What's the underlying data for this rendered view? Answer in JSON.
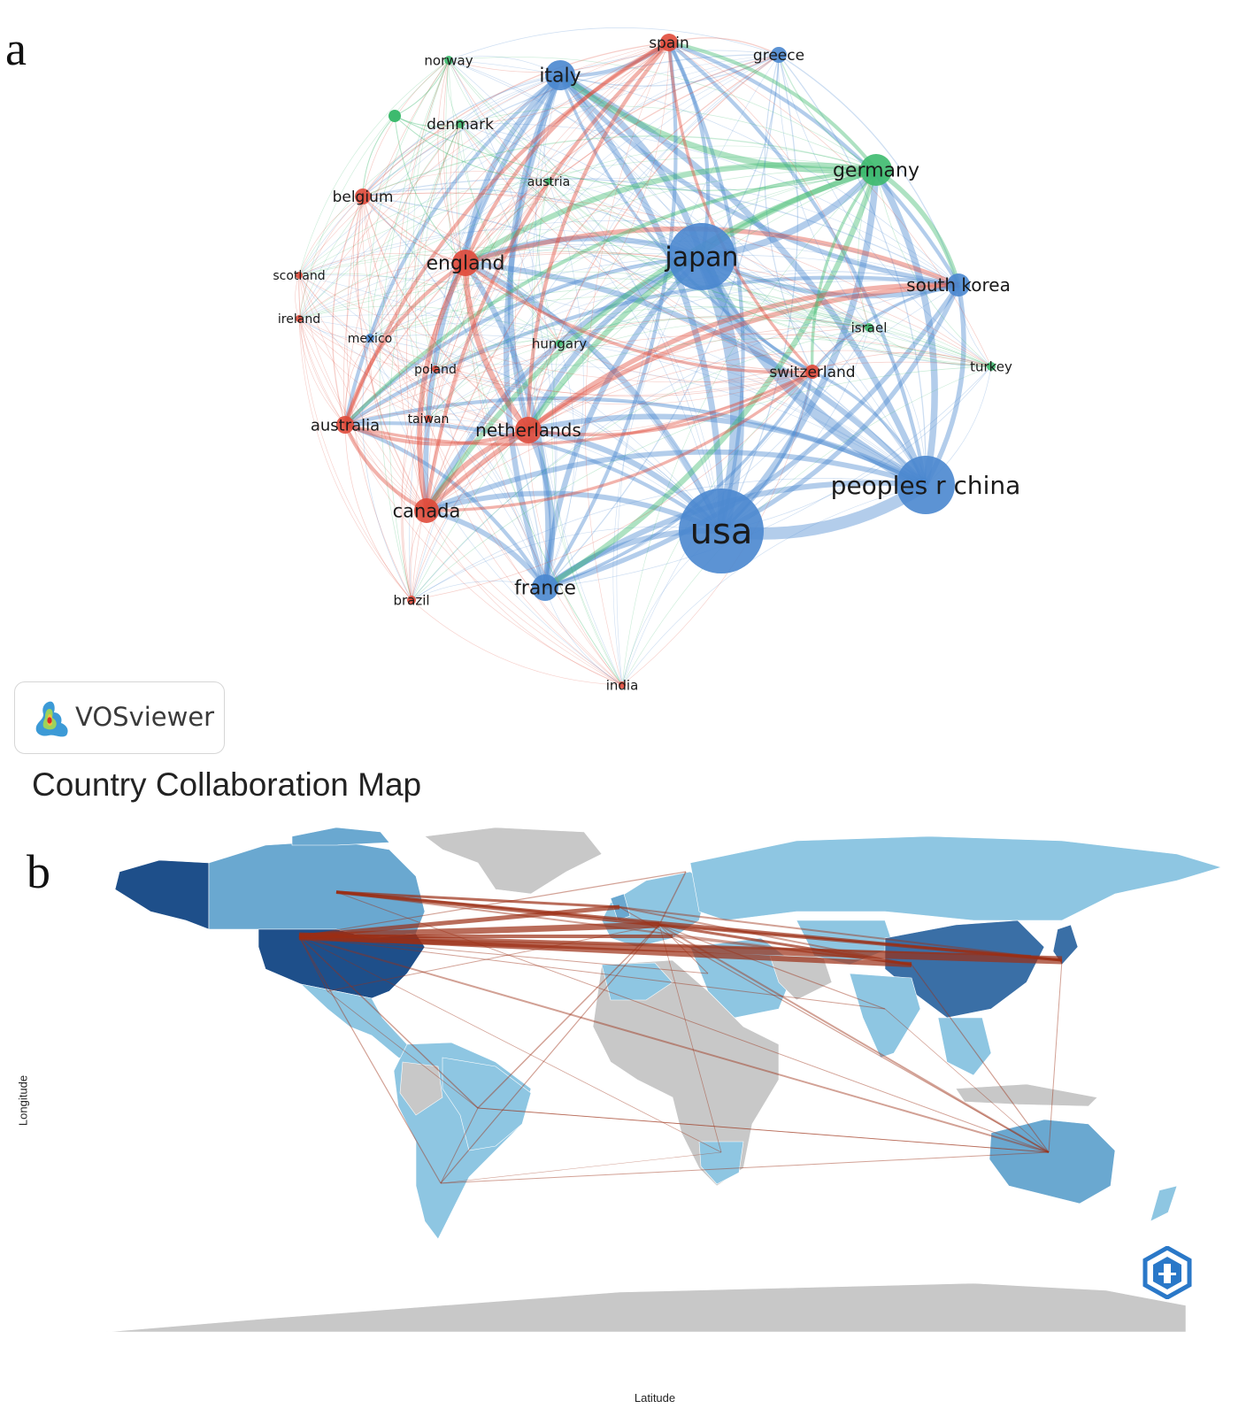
{
  "panel_a": {
    "letter": "a",
    "badge_text": "VOSviewer",
    "colors": {
      "blue": "#4a87cf",
      "red": "#e04a3a",
      "green": "#3dba6e"
    },
    "nodes": [
      {
        "id": "usa",
        "label": "usa",
        "cluster": "blue"
      },
      {
        "id": "japan",
        "label": "japan",
        "cluster": "blue"
      },
      {
        "id": "china",
        "label": "peoples r china",
        "cluster": "blue"
      },
      {
        "id": "italy",
        "label": "italy",
        "cluster": "blue"
      },
      {
        "id": "france",
        "label": "france",
        "cluster": "blue"
      },
      {
        "id": "southkorea",
        "label": "south korea",
        "cluster": "blue"
      },
      {
        "id": "greece",
        "label": "greece",
        "cluster": "blue"
      },
      {
        "id": "germany",
        "label": "germany",
        "cluster": "green"
      },
      {
        "id": "norway",
        "label": "norway",
        "cluster": "green"
      },
      {
        "id": "denmark",
        "label": "denmark",
        "cluster": "green"
      },
      {
        "id": "austria",
        "label": "austria",
        "cluster": "green"
      },
      {
        "id": "israel",
        "label": "israel",
        "cluster": "green"
      },
      {
        "id": "turkey",
        "label": "turkey",
        "cluster": "green"
      },
      {
        "id": "hungary",
        "label": "hungary",
        "cluster": "green"
      },
      {
        "id": "spain",
        "label": "spain",
        "cluster": "red"
      },
      {
        "id": "belgium",
        "label": "belgium",
        "cluster": "red"
      },
      {
        "id": "england",
        "label": "england",
        "cluster": "red"
      },
      {
        "id": "scotland",
        "label": "scotland",
        "cluster": "red"
      },
      {
        "id": "ireland",
        "label": "ireland",
        "cluster": "red"
      },
      {
        "id": "mexico",
        "label": "mexico",
        "cluster": "blue"
      },
      {
        "id": "poland",
        "label": "poland",
        "cluster": "red"
      },
      {
        "id": "taiwan",
        "label": "taiwan",
        "cluster": "red"
      },
      {
        "id": "australia",
        "label": "australia",
        "cluster": "red"
      },
      {
        "id": "netherlands",
        "label": "netherlands",
        "cluster": "red"
      },
      {
        "id": "canada",
        "label": "canada",
        "cluster": "red"
      },
      {
        "id": "brazil",
        "label": "brazil",
        "cluster": "red"
      },
      {
        "id": "india",
        "label": "india",
        "cluster": "red"
      },
      {
        "id": "switzerland",
        "label": "switzerland",
        "cluster": "red"
      }
    ]
  },
  "panel_b": {
    "letter": "b",
    "title": "Country Collaboration Map",
    "xlabel": "Latitude",
    "ylabel": "Longitude",
    "colors": {
      "ocean": "#ffffff",
      "no_data": "#c8c8c8",
      "low": "#8ec6e2",
      "mid": "#6aa8d0",
      "high": "#3a6fa6",
      "top": "#1e4f8a",
      "link": "#9b2e14"
    }
  }
}
